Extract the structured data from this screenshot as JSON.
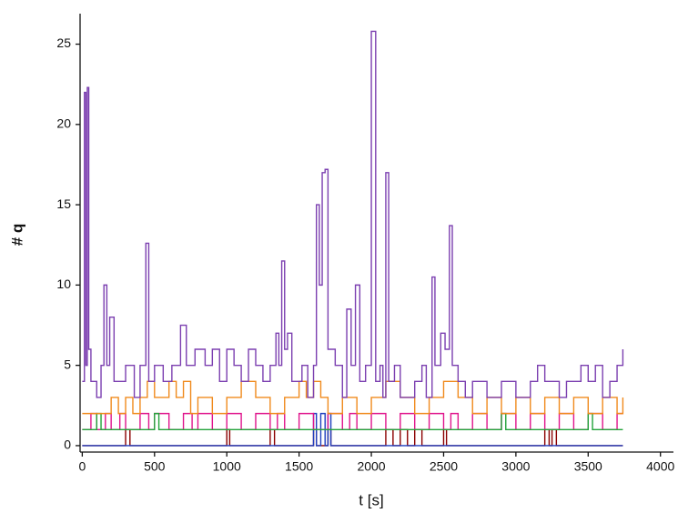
{
  "chart_data": {
    "type": "line",
    "interpolation": "step-after",
    "x_label": "t [s]",
    "y_label": "# q",
    "xlim": [
      -15,
      4090
    ],
    "ylim": [
      -0.4,
      26.9
    ],
    "xticks": [
      0,
      500,
      1000,
      1500,
      2000,
      2500,
      3000,
      3500,
      4000
    ],
    "yticks": [
      0,
      5,
      10,
      15,
      20,
      25
    ],
    "series": [
      {
        "color": "#8b0000",
        "x": [
          0,
          300,
          330,
          1000,
          1020,
          1300,
          1330,
          1600,
          1620,
          1700,
          1720,
          2100,
          2150,
          2200,
          2250,
          2300,
          2350,
          2500,
          2520,
          3200,
          3230,
          3250,
          3280,
          3740
        ],
        "values": [
          0,
          1,
          0,
          1,
          0,
          1,
          0,
          1,
          0,
          1,
          0,
          1,
          0,
          1,
          0,
          1,
          0,
          1,
          0,
          1,
          0,
          1,
          0,
          0
        ]
      },
      {
        "color": "#1f3fbf",
        "x": [
          0,
          1500,
          1600,
          1620,
          1650,
          1680,
          1700,
          1720,
          3740
        ],
        "values": [
          0,
          0,
          2,
          0,
          2,
          0,
          2,
          0,
          0
        ]
      },
      {
        "color": "#e0148c",
        "x": [
          0,
          60,
          100,
          160,
          200,
          260,
          300,
          400,
          460,
          500,
          600,
          700,
          760,
          800,
          900,
          1000,
          1100,
          1200,
          1300,
          1350,
          1400,
          1500,
          1600,
          1700,
          1800,
          1850,
          1900,
          2000,
          2100,
          2200,
          2300,
          2400,
          2500,
          2550,
          2600,
          2700,
          2800,
          2900,
          3000,
          3100,
          3200,
          3300,
          3400,
          3500,
          3600,
          3700,
          3740
        ],
        "values": [
          1,
          2,
          1,
          2,
          1,
          2,
          1,
          2,
          1,
          2,
          1,
          2,
          1,
          2,
          1,
          2,
          1,
          2,
          1,
          2,
          1,
          2,
          1,
          2,
          1,
          2,
          1,
          2,
          1,
          2,
          1,
          2,
          1,
          2,
          1,
          2,
          1,
          2,
          1,
          2,
          1,
          2,
          1,
          2,
          1,
          2,
          2
        ]
      },
      {
        "color": "#22a33a",
        "x": [
          0,
          100,
          130,
          500,
          530,
          2900,
          2930,
          3500,
          3530,
          3740
        ],
        "values": [
          1,
          2,
          1,
          2,
          1,
          2,
          1,
          2,
          1,
          1
        ]
      },
      {
        "color": "#f08a1c",
        "x": [
          0,
          200,
          250,
          300,
          350,
          400,
          450,
          500,
          600,
          650,
          700,
          750,
          800,
          900,
          1000,
          1100,
          1200,
          1300,
          1400,
          1500,
          1550,
          1600,
          1650,
          1700,
          1800,
          1900,
          2000,
          2100,
          2200,
          2300,
          2400,
          2500,
          2600,
          2700,
          2800,
          2900,
          3000,
          3100,
          3200,
          3300,
          3400,
          3500,
          3600,
          3700,
          3740
        ],
        "values": [
          2,
          3,
          2,
          3,
          2,
          3,
          4,
          3,
          4,
          3,
          4,
          2,
          3,
          2,
          3,
          4,
          3,
          2,
          3,
          4,
          3,
          4,
          3,
          2,
          3,
          2,
          3,
          4,
          3,
          2,
          3,
          4,
          3,
          2,
          3,
          2,
          3,
          2,
          3,
          2,
          3,
          2,
          3,
          2,
          3
        ]
      },
      {
        "color": "#7b3fb0",
        "x": [
          0,
          15,
          25,
          35,
          45,
          60,
          100,
          130,
          150,
          170,
          190,
          220,
          300,
          360,
          400,
          440,
          460,
          500,
          560,
          620,
          680,
          720,
          780,
          850,
          900,
          950,
          1000,
          1050,
          1100,
          1150,
          1200,
          1250,
          1300,
          1340,
          1360,
          1380,
          1400,
          1420,
          1450,
          1520,
          1560,
          1600,
          1620,
          1640,
          1660,
          1680,
          1700,
          1750,
          1800,
          1830,
          1860,
          1890,
          1920,
          1960,
          2000,
          2030,
          2060,
          2080,
          2100,
          2120,
          2160,
          2200,
          2300,
          2350,
          2380,
          2420,
          2440,
          2480,
          2510,
          2540,
          2560,
          2600,
          2650,
          2700,
          2800,
          2900,
          3000,
          3100,
          3150,
          3200,
          3300,
          3350,
          3450,
          3500,
          3550,
          3600,
          3650,
          3700,
          3740
        ],
        "values": [
          4,
          22,
          5,
          22.3,
          6,
          4,
          3,
          5,
          10,
          5,
          8,
          4,
          5,
          3,
          5,
          12.6,
          4,
          5,
          4,
          5,
          7.5,
          5,
          6,
          5,
          6,
          4,
          6,
          5,
          4,
          6,
          5,
          4,
          5,
          7,
          5,
          11.5,
          6,
          7,
          4,
          5,
          3,
          5,
          15,
          10,
          17,
          17.2,
          6,
          5,
          3,
          8.5,
          5,
          10,
          4,
          5,
          25.8,
          4,
          5,
          3,
          17,
          4,
          5,
          3,
          4,
          5,
          3,
          10.5,
          5,
          7,
          6,
          13.7,
          5,
          4,
          3,
          4,
          3,
          4,
          3,
          4,
          5,
          4,
          3,
          4,
          5,
          4,
          5,
          3,
          4,
          5,
          6
        ]
      }
    ]
  }
}
